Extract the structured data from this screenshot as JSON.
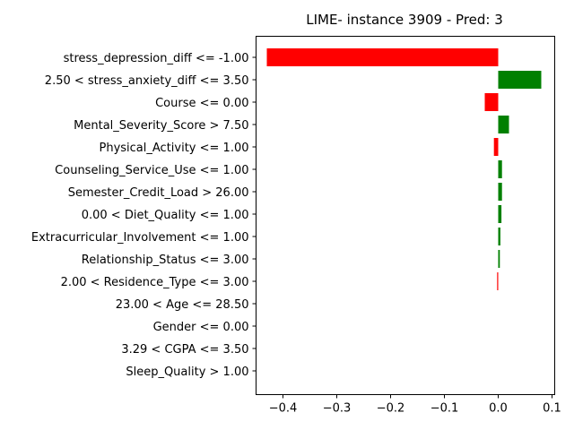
{
  "chart_data": {
    "type": "bar",
    "orientation": "horizontal",
    "title": "LIME- instance 3909 - Pred: 3",
    "xlabel": "",
    "ylabel": "",
    "xlim": [
      -0.45,
      0.105
    ],
    "x_ticks": [
      -0.4,
      -0.3,
      -0.2,
      -0.1,
      0.0,
      0.1
    ],
    "x_tick_labels": [
      "−0.4",
      "−0.3",
      "−0.2",
      "−0.1",
      "0.0",
      "0.1"
    ],
    "grid": false,
    "legend": "none",
    "positive_color": "#008000",
    "negative_color": "#ff0000",
    "categories": [
      "stress_depression_diff <= -1.00",
      "2.50 < stress_anxiety_diff <= 3.50",
      "Course <= 0.00",
      "Mental_Severity_Score > 7.50",
      "Physical_Activity <= 1.00",
      "Counseling_Service_Use <= 1.00",
      "Semester_Credit_Load > 26.00",
      "0.00 < Diet_Quality <= 1.00",
      "Extracurricular_Involvement <= 1.00",
      "Relationship_Status <= 3.00",
      "2.00 < Residence_Type <= 3.00",
      "23.00 < Age <= 28.50",
      "Gender <= 0.00",
      "3.29 < CGPA <= 3.50",
      "Sleep_Quality > 1.00"
    ],
    "values": [
      -0.43,
      0.08,
      -0.025,
      0.02,
      -0.008,
      0.007,
      0.007,
      0.006,
      0.004,
      0.003,
      -0.002,
      0.0,
      0.0,
      0.0,
      0.0
    ]
  }
}
